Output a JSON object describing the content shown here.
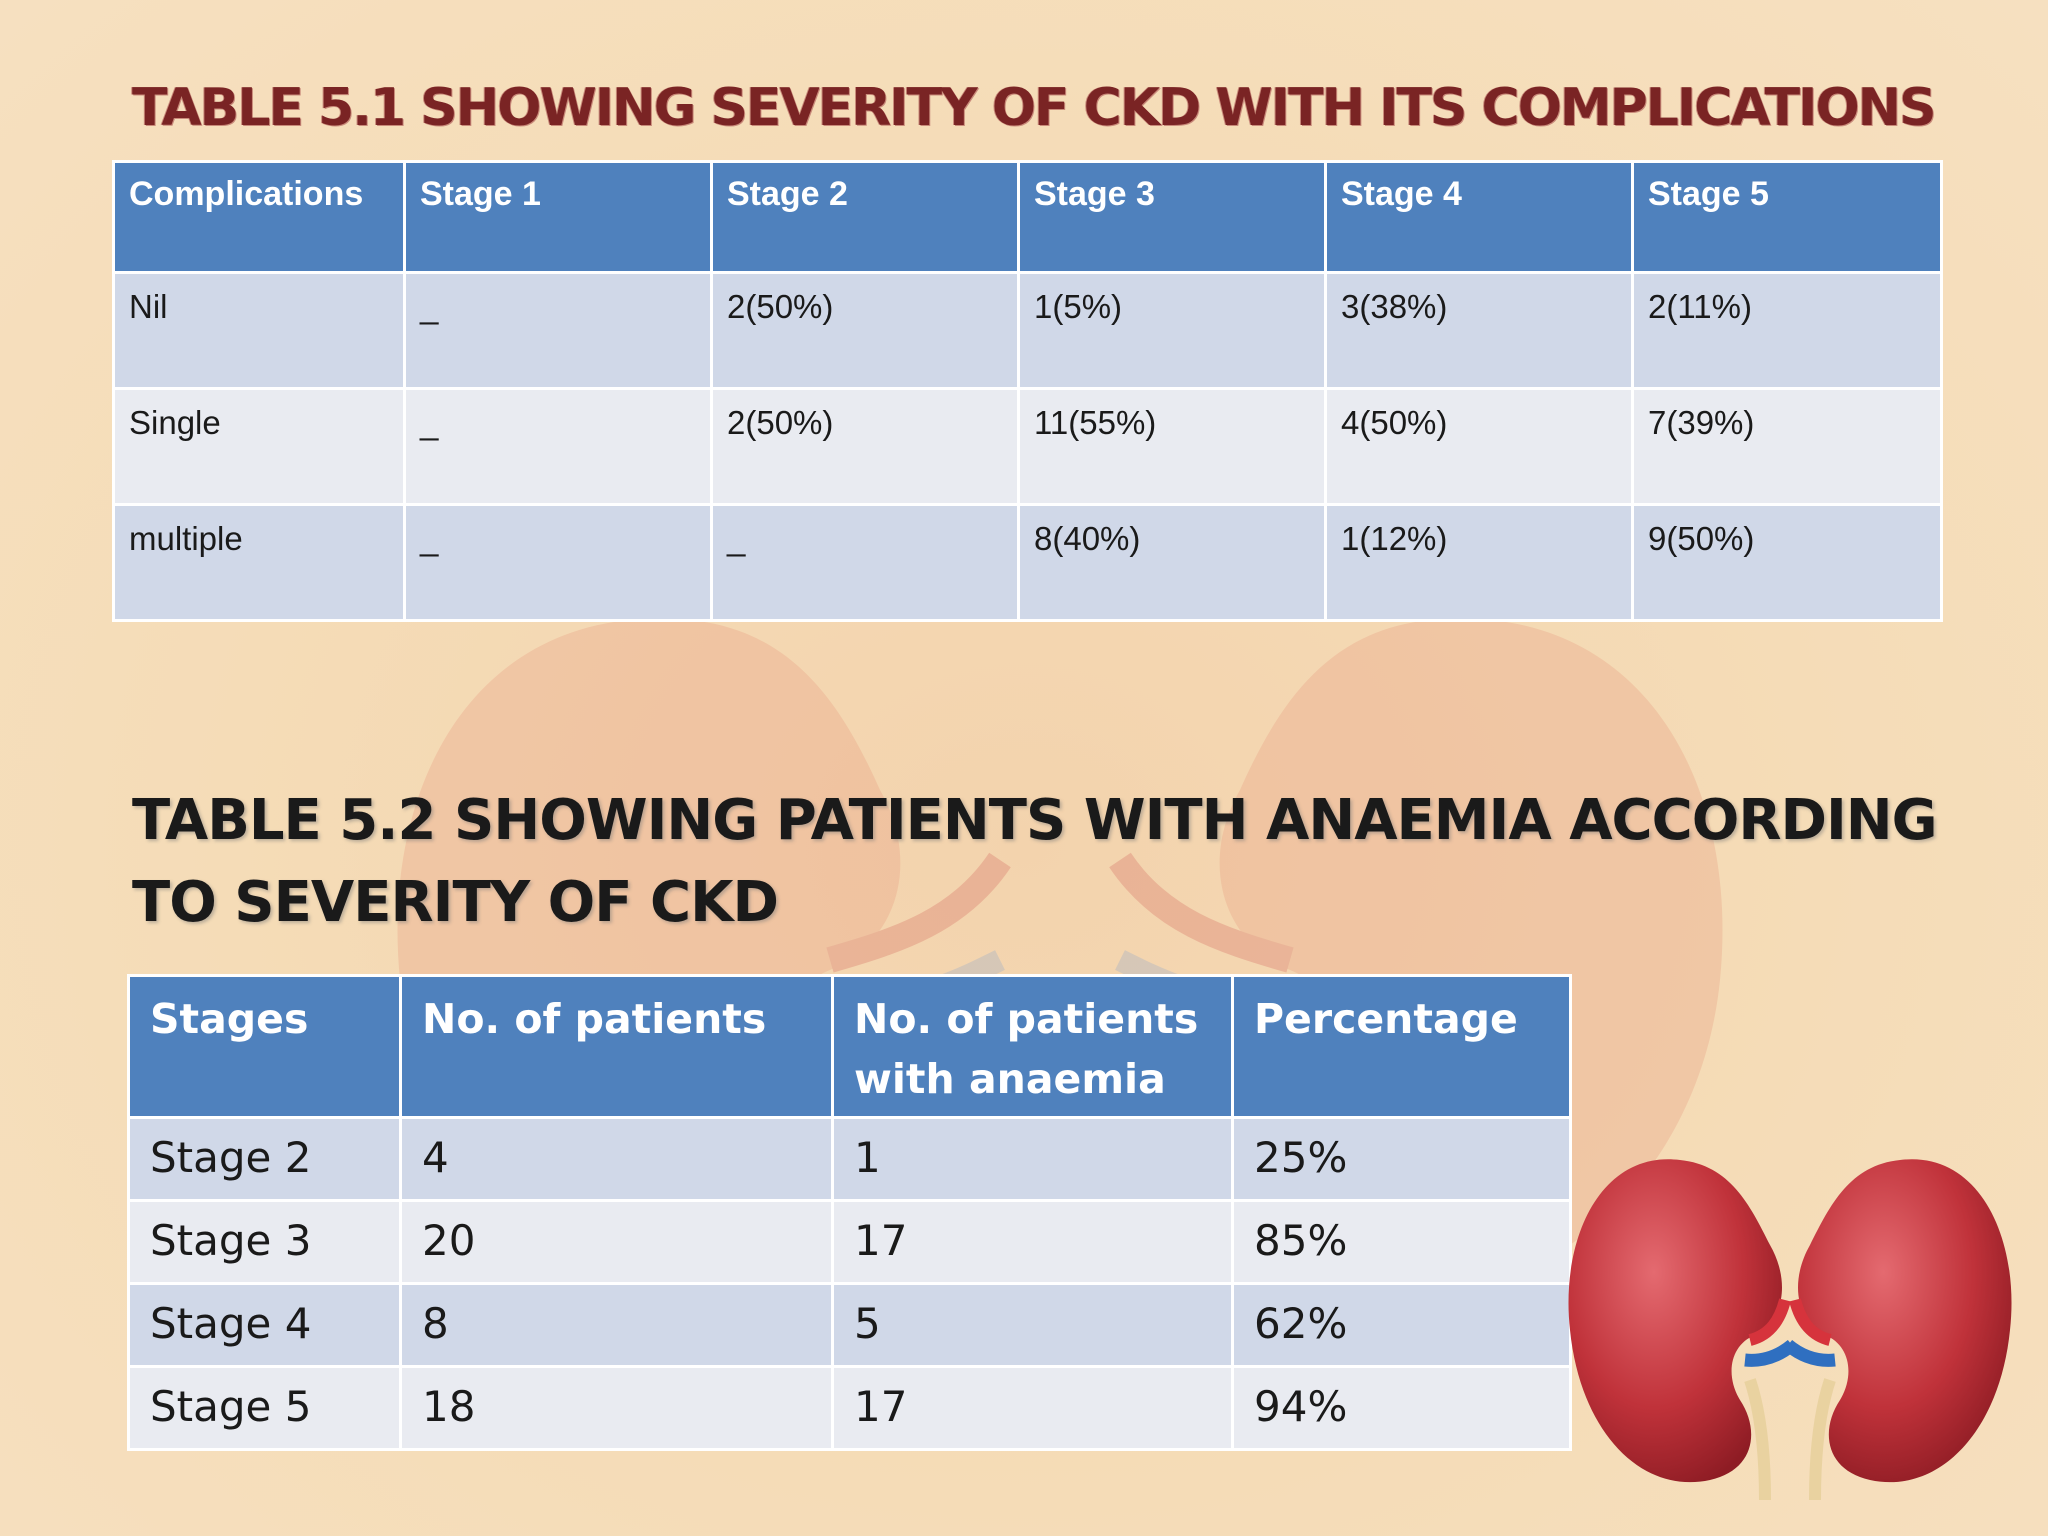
{
  "table1": {
    "title": "TABLE 5.1 SHOWING SEVERITY OF CKD WITH ITS COMPLICATIONS",
    "headers": [
      "Complications",
      "Stage 1",
      "Stage 2",
      "Stage 3",
      "Stage 4",
      "Stage 5"
    ],
    "rows": [
      [
        "Nil",
        "_",
        "2(50%)",
        "1(5%)",
        "3(38%)",
        "2(11%)"
      ],
      [
        "Single",
        "_",
        "2(50%)",
        "11(55%)",
        "4(50%)",
        "7(39%)"
      ],
      [
        "multiple",
        "_",
        "_",
        "8(40%)",
        "1(12%)",
        "9(50%)"
      ]
    ]
  },
  "table2": {
    "title": "TABLE 5.2 SHOWING PATIENTS WITH ANAEMIA ACCORDING TO SEVERITY OF CKD",
    "headers": [
      "Stages",
      "No. of patients",
      "No. of patients with anaemia",
      "Percentage"
    ],
    "rows": [
      [
        "Stage 2",
        "4",
        "1",
        "25%"
      ],
      [
        "Stage 3",
        "20",
        "17",
        "85%"
      ],
      [
        "Stage 4",
        "8",
        "5",
        "62%"
      ],
      [
        "Stage 5",
        "18",
        "17",
        "94%"
      ]
    ]
  },
  "colors": {
    "background": "#f5dcb7",
    "header_blue": "#4f81bd",
    "row_odd": "#d0d8e8",
    "row_even": "#e9ebf1",
    "title1_color": "#7a2424",
    "kidney_red": "#c0323a"
  }
}
